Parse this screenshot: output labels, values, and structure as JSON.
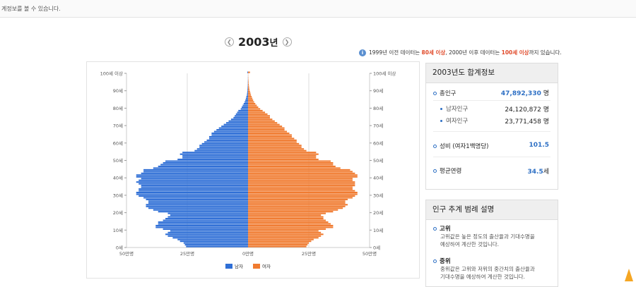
{
  "topbar": {
    "text": "계정보를 볼 수 있습니다."
  },
  "year_nav": {
    "year": "2003",
    "suffix": "년",
    "prev_icon": "chevron-left-icon",
    "next_icon": "chevron-right-icon"
  },
  "notice": {
    "part1": "1999년 이전 데이터는 ",
    "red1": "80세 이상",
    "part2": ", 2000년 이후 데이터는 ",
    "red2": "100세 이상",
    "part3": "까지 있습니다."
  },
  "summary": {
    "title": "2003년도 합계정보",
    "total_label": "총인구",
    "total_value": "47,892,330",
    "total_unit": "명",
    "male_label": "남자인구",
    "male_value": "24,120,872",
    "male_unit": "명",
    "female_label": "여자인구",
    "female_value": "23,771,458",
    "female_unit": "명",
    "ratio_label": "성비 (여자1백명당)",
    "ratio_value": "101.5",
    "age_label": "평균연령",
    "age_value": "34.5",
    "age_unit": "세"
  },
  "legend_panel": {
    "title": "인구 추계 범례 설명",
    "items": [
      {
        "title": "고위",
        "desc1": "고위값은 높은 정도의 출산율과 기대수명을",
        "desc2": "예상하여 계산한 것입니다."
      },
      {
        "title": "중위",
        "desc1": "중위값은 고위와 저위의 중간치의 출산율과",
        "desc2": "기대수명을 예상하여 계산한 것입니다."
      }
    ]
  },
  "chart_data": {
    "type": "bar",
    "orientation": "horizontal-pyramid",
    "y_tick_labels": [
      "100세 이상",
      "90세",
      "80세",
      "70세",
      "60세",
      "50세",
      "40세",
      "30세",
      "20세",
      "10세",
      "0세"
    ],
    "x_tick_labels": [
      "50만명",
      "25만명",
      "0만명",
      "25만명",
      "50만명"
    ],
    "x_range": [
      0,
      50
    ],
    "ages": [
      0,
      1,
      2,
      3,
      4,
      5,
      6,
      7,
      8,
      9,
      10,
      11,
      12,
      13,
      14,
      15,
      16,
      17,
      18,
      19,
      20,
      21,
      22,
      23,
      24,
      25,
      26,
      27,
      28,
      29,
      30,
      31,
      32,
      33,
      34,
      35,
      36,
      37,
      38,
      39,
      40,
      41,
      42,
      43,
      44,
      45,
      46,
      47,
      48,
      49,
      50,
      51,
      52,
      53,
      54,
      55,
      56,
      57,
      58,
      59,
      60,
      61,
      62,
      63,
      64,
      65,
      66,
      67,
      68,
      69,
      70,
      71,
      72,
      73,
      74,
      75,
      76,
      77,
      78,
      79,
      80,
      81,
      82,
      83,
      84,
      85,
      86,
      87,
      88,
      89,
      90,
      91,
      92,
      93,
      94,
      95,
      96,
      97,
      98,
      99,
      100
    ],
    "series": [
      {
        "name": "남자",
        "color": "#2f6fd6",
        "values": [
          25.5,
          26,
          26.5,
          28,
          29,
          31,
          33,
          34,
          33,
          32,
          35,
          38,
          38,
          37,
          37,
          35,
          34,
          33,
          32,
          33,
          37,
          39,
          41,
          42,
          42,
          41,
          41,
          42,
          43,
          45,
          46,
          46,
          45,
          45,
          44,
          44,
          45,
          46,
          45,
          44,
          46,
          46,
          44,
          43,
          43,
          39,
          37,
          36,
          35,
          34,
          29,
          27,
          27,
          28,
          27,
          22,
          21,
          20,
          20,
          19,
          18,
          17,
          16,
          16,
          15,
          15,
          14,
          13,
          12,
          11,
          10,
          9,
          8,
          7,
          6,
          5.5,
          5,
          4.5,
          4,
          3,
          2.6,
          2.2,
          1.8,
          1.4,
          1.1,
          0.9,
          0.7,
          0.5,
          0.4,
          0.3,
          0.25,
          0.2,
          0.15,
          0.1,
          0.1,
          0.08,
          0.06,
          0.05,
          0.04,
          0.03,
          0.3
        ]
      },
      {
        "name": "여자",
        "color": "#f07b30",
        "values": [
          24,
          24.5,
          25,
          26,
          27,
          29,
          30,
          31,
          30,
          29,
          32,
          35,
          35,
          34,
          33,
          32,
          31,
          31,
          30,
          32,
          35,
          37,
          39,
          40,
          41,
          40,
          40,
          41,
          43,
          44,
          45,
          45,
          44,
          43,
          43,
          44,
          44,
          44,
          43,
          43,
          45,
          45,
          44,
          43,
          42,
          38,
          36,
          35,
          35,
          34,
          29,
          28,
          28,
          29,
          28,
          24,
          23,
          22,
          22,
          21,
          20,
          20,
          19,
          18,
          18,
          17,
          16,
          15,
          15,
          14,
          13,
          12,
          11,
          10,
          9,
          9,
          8,
          7,
          6,
          5,
          4.2,
          3.6,
          3,
          2.5,
          2.1,
          1.8,
          1.5,
          1.2,
          1,
          0.8,
          0.6,
          0.5,
          0.4,
          0.3,
          0.25,
          0.2,
          0.15,
          0.1,
          0.08,
          0.06,
          0.8
        ]
      }
    ],
    "legend": [
      "남자",
      "여자"
    ]
  }
}
